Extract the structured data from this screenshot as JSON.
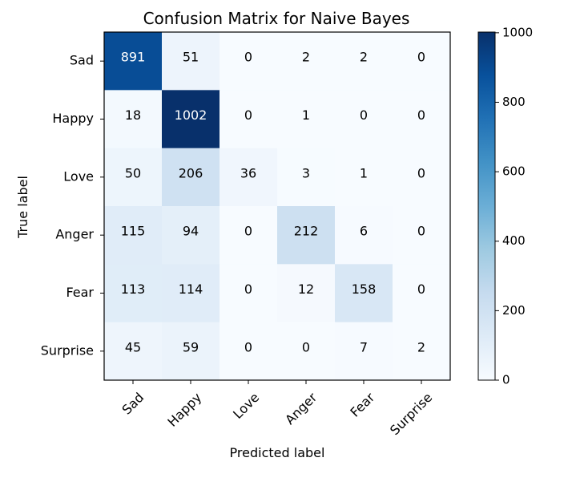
{
  "chart_data": {
    "type": "heatmap",
    "title": "Confusion Matrix for Naive Bayes",
    "xlabel": "Predicted label",
    "ylabel": "True label",
    "x_categories": [
      "Sad",
      "Happy",
      "Love",
      "Anger",
      "Fear",
      "Surprise"
    ],
    "y_categories": [
      "Sad",
      "Happy",
      "Love",
      "Anger",
      "Fear",
      "Surprise"
    ],
    "values": [
      [
        891,
        51,
        0,
        2,
        2,
        0
      ],
      [
        18,
        1002,
        0,
        1,
        0,
        0
      ],
      [
        50,
        206,
        36,
        3,
        1,
        0
      ],
      [
        115,
        94,
        0,
        212,
        6,
        0
      ],
      [
        113,
        114,
        0,
        12,
        158,
        0
      ],
      [
        45,
        59,
        0,
        0,
        7,
        2
      ]
    ],
    "colormap": "Blues",
    "colorbar": {
      "range": [
        0,
        1002
      ],
      "ticks": [
        0,
        200,
        400,
        600,
        800,
        1000
      ]
    },
    "colors": {
      "low": "#f7fbff",
      "high": "#08306b"
    }
  }
}
